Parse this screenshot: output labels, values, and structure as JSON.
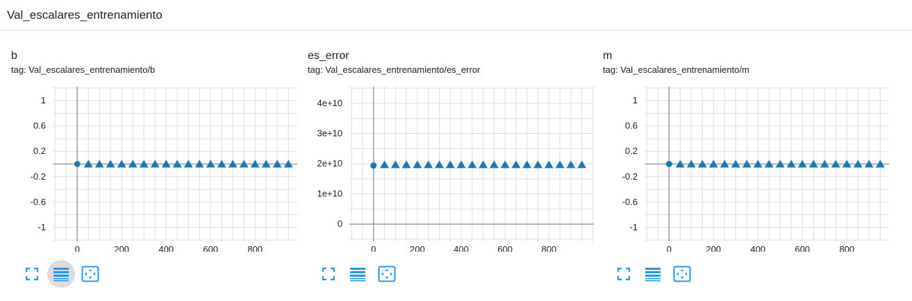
{
  "header": {
    "title": "Val_escalares_entrenamiento"
  },
  "colors": {
    "series": "#1f77b4",
    "grid": "#dddddd",
    "axis": "#9e9e9e",
    "icon": "#2196f3"
  },
  "toolbar": {
    "icons": [
      "fullscreen-icon",
      "toggle-log-scale-icon",
      "fit-domain-icon"
    ]
  },
  "cards": [
    {
      "title": "b",
      "tag": "tag: Val_escalares_entrenamiento/b",
      "log_scale_active": true,
      "chart_data": {
        "type": "scatter",
        "title": "b",
        "x_ticks": [
          0,
          200,
          400,
          600,
          800
        ],
        "y_ticks": [
          1,
          0.6,
          0.2,
          -0.2,
          -0.6,
          -1
        ],
        "y_tick_labels": [
          "1",
          "0.6",
          "0.2",
          "-0.2",
          "-0.6",
          "-1"
        ],
        "xlim": [
          -110,
          990
        ],
        "ylim": [
          -1.22,
          1.22
        ],
        "grid": true,
        "x_step_interval": 50,
        "series": [
          {
            "marker": "circle",
            "x": [
              0
            ],
            "y": [
              0
            ]
          },
          {
            "marker": "triangle",
            "x": [
              50,
              100,
              150,
              200,
              250,
              300,
              350,
              400,
              450,
              500,
              550,
              600,
              650,
              700,
              750,
              800,
              850,
              900,
              950
            ],
            "y": [
              0,
              0,
              0,
              0,
              0,
              0,
              0,
              0,
              0,
              0,
              0,
              0,
              0,
              0,
              0,
              0,
              0,
              0,
              0
            ]
          }
        ]
      }
    },
    {
      "title": "es_error",
      "tag": "tag: Val_escalares_entrenamiento/es_error",
      "log_scale_active": false,
      "chart_data": {
        "type": "scatter",
        "title": "es_error",
        "x_ticks": [
          0,
          200,
          400,
          600,
          800
        ],
        "y_ticks": [
          40000000000,
          30000000000,
          20000000000,
          10000000000,
          0
        ],
        "y_tick_labels": [
          "4e+10",
          "3e+10",
          "2e+10",
          "1e+10",
          "0"
        ],
        "xlim": [
          -110,
          1005
        ],
        "ylim": [
          -5700000000,
          45500000000
        ],
        "grid": true,
        "x_step_interval": 50,
        "series": [
          {
            "marker": "circle",
            "x": [
              0
            ],
            "y": [
              19400000000
            ]
          },
          {
            "marker": "triangle",
            "x": [
              50,
              100,
              150,
              200,
              250,
              300,
              350,
              400,
              450,
              500,
              550,
              600,
              650,
              700,
              750,
              800,
              850,
              900,
              950
            ],
            "y": [
              19700000000,
              19700000000,
              19700000000,
              19700000000,
              19700000000,
              19700000000,
              19700000000,
              19700000000,
              19700000000,
              19700000000,
              19700000000,
              19700000000,
              19700000000,
              19700000000,
              19700000000,
              19700000000,
              19700000000,
              19700000000,
              19700000000
            ]
          }
        ]
      }
    },
    {
      "title": "m",
      "tag": "tag: Val_escalares_entrenamiento/m",
      "log_scale_active": false,
      "chart_data": {
        "type": "scatter",
        "title": "m",
        "x_ticks": [
          0,
          200,
          400,
          600,
          800
        ],
        "y_ticks": [
          1,
          0.6,
          0.2,
          -0.2,
          -0.6,
          -1
        ],
        "y_tick_labels": [
          "1",
          "0.6",
          "0.2",
          "-0.2",
          "-0.6",
          "-1"
        ],
        "xlim": [
          -110,
          990
        ],
        "ylim": [
          -1.22,
          1.22
        ],
        "grid": true,
        "x_step_interval": 50,
        "series": [
          {
            "marker": "circle",
            "x": [
              0
            ],
            "y": [
              0
            ]
          },
          {
            "marker": "triangle",
            "x": [
              50,
              100,
              150,
              200,
              250,
              300,
              350,
              400,
              450,
              500,
              550,
              600,
              650,
              700,
              750,
              800,
              850,
              900,
              950
            ],
            "y": [
              0,
              0,
              0,
              0,
              0,
              0,
              0,
              0,
              0,
              0,
              0,
              0,
              0,
              0,
              0,
              0,
              0,
              0,
              0
            ]
          }
        ]
      }
    }
  ]
}
